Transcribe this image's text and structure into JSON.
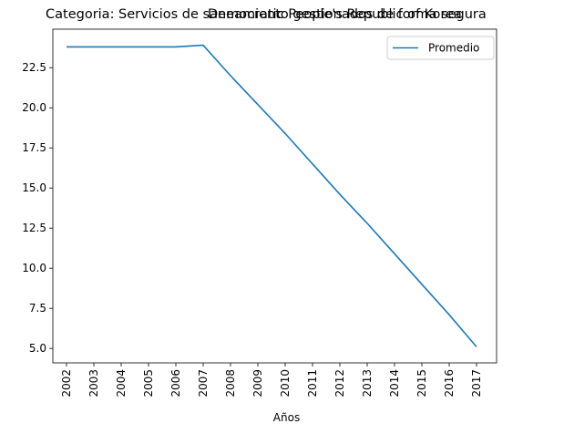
{
  "chart_data": {
    "type": "line",
    "title_left": "Categoria: Servicios de saneamiento gestionados de forma segura",
    "title_center": "Democratic People's Republic of Korea",
    "xlabel": "Años",
    "ylabel": "",
    "x": [
      "2002",
      "2003",
      "2004",
      "2005",
      "2006",
      "2007",
      "2008",
      "2009",
      "2010",
      "2011",
      "2012",
      "2013",
      "2014",
      "2015",
      "2016",
      "2017"
    ],
    "series": [
      {
        "name": "Promedio",
        "values": [
          23.8,
          23.8,
          23.8,
          23.8,
          23.8,
          23.9,
          22.0,
          20.2,
          18.4,
          16.5,
          14.6,
          12.8,
          10.9,
          9.0,
          7.1,
          5.1
        ]
      }
    ],
    "ylim": [
      4.1,
      24.9
    ],
    "yticks": [
      "5.0",
      "7.5",
      "10.0",
      "12.5",
      "15.0",
      "17.5",
      "20.0",
      "22.5"
    ],
    "grid": false,
    "legend": "top-right",
    "color": "#1f77b4"
  }
}
